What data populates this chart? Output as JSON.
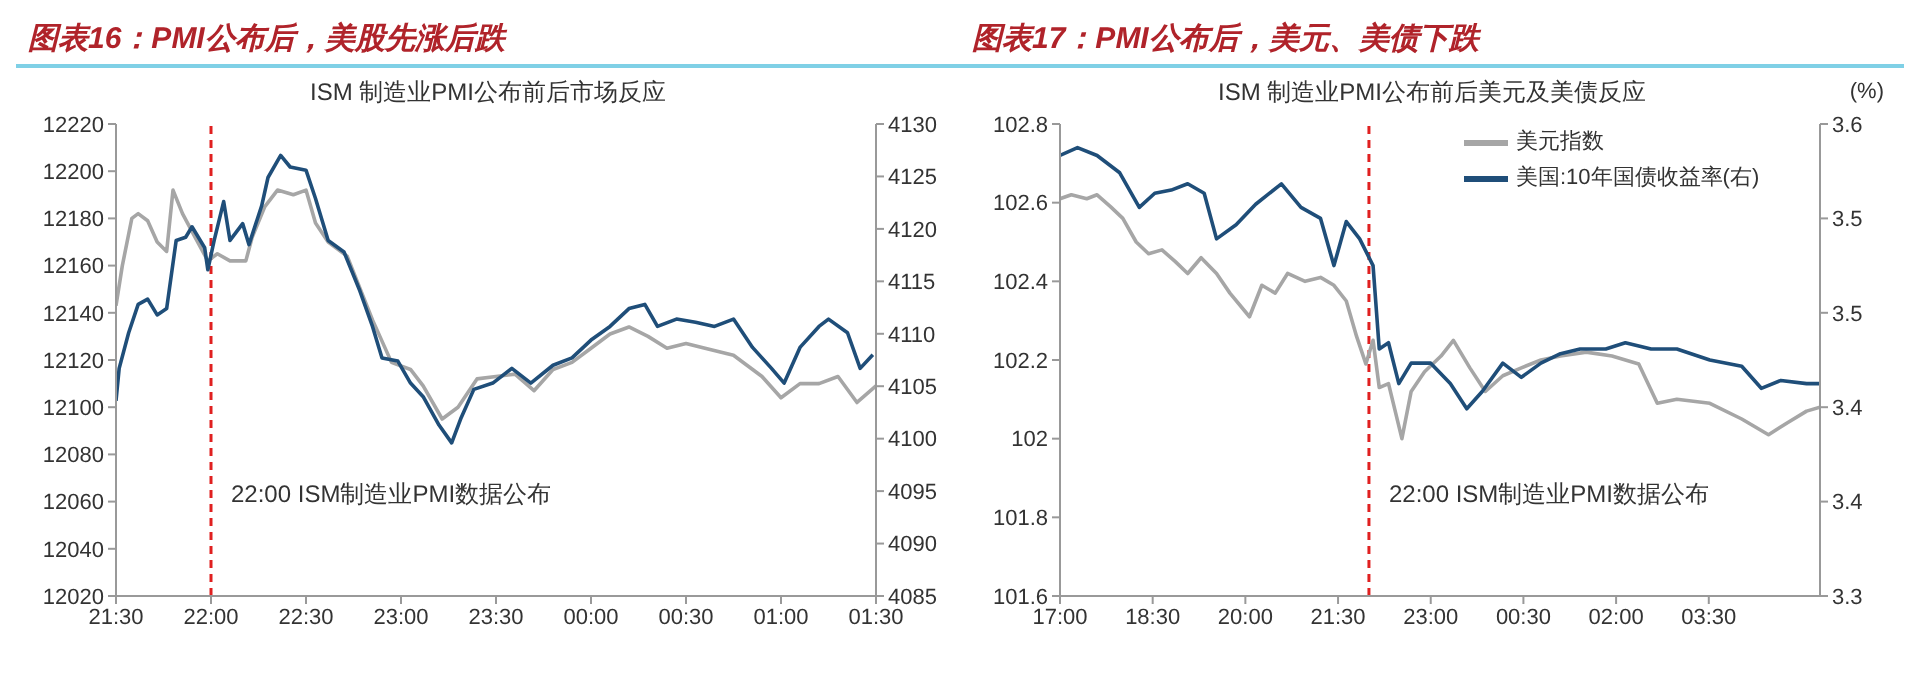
{
  "chart_data": [
    {
      "type": "line",
      "title": "图表16：PMI公布后，美股先涨后跌",
      "subtitle": "ISM 制造业PMI公布前后市场反应",
      "legend": false,
      "xlim": [
        "--04-03T21:30",
        "--04-04T01:30"
      ],
      "xticks": [
        {
          "value": "--04-03T21:30",
          "label": "21:30"
        },
        {
          "value": "--04-03T22:00",
          "label": "22:00"
        },
        {
          "value": "--04-03T22:30",
          "label": "22:30"
        },
        {
          "value": "--04-03T23:00",
          "label": "23:00"
        },
        {
          "value": "--04-03T23:30",
          "label": "23:30"
        },
        {
          "value": "--04-04T00:00",
          "label": "00:00"
        },
        {
          "value": "--04-04T00:30",
          "label": "00:30"
        },
        {
          "value": "--04-04T01:00",
          "label": "01:00"
        },
        {
          "value": "--04-04T01:30",
          "label": "01:30"
        }
      ],
      "ylim": [
        12020,
        12220
      ],
      "yticks": [
        12020,
        12040,
        12060,
        12080,
        12100,
        12120,
        12140,
        12160,
        12180,
        12200,
        12220
      ],
      "y2lim": [
        4085,
        4130
      ],
      "y2ticks": [
        4085,
        4090,
        4095,
        4100,
        4105,
        4110,
        4115,
        4120,
        4125,
        4130
      ],
      "ref_lines": [
        {
          "axis": "x",
          "value": "--04-03T22:00",
          "label": "22:00 ISM制造业PMI数据公布",
          "color": "#e02020",
          "line_style": "dashed"
        }
      ],
      "series": [
        {
          "color": "#a6a6a6",
          "x": [
            "--04-03T21:30",
            "--04-03T21:32",
            "--04-03T21:35",
            "--04-03T21:37",
            "--04-03T21:40",
            "--04-03T21:43",
            "--04-03T21:46",
            "--04-03T21:48",
            "--04-03T21:51",
            "--04-03T21:55",
            "--04-03T21:59",
            "--04-03T22:02",
            "--04-03T22:06",
            "--04-03T22:11",
            "--04-03T22:13",
            "--04-03T22:17",
            "--04-03T22:21",
            "--04-03T22:26",
            "--04-03T22:30",
            "--04-03T22:33",
            "--04-03T22:37",
            "--04-03T22:43",
            "--04-03T22:51",
            "--04-03T22:57",
            "--04-03T23:03",
            "--04-03T23:07",
            "--04-03T23:13",
            "--04-03T23:18",
            "--04-03T23:24",
            "--04-03T23:30",
            "--04-03T23:36",
            "--04-03T23:42",
            "--04-03T23:48",
            "--04-03T23:54",
            "--04-04T00:00",
            "--04-04T00:06",
            "--04-04T00:12",
            "--04-04T00:18",
            "--04-04T00:24",
            "--04-04T00:30",
            "--04-04T00:36",
            "--04-04T00:45",
            "--04-04T00:54",
            "--04-04T01:00",
            "--04-04T01:06",
            "--04-04T01:12",
            "--04-04T01:18",
            "--04-04T01:24",
            "--04-04T01:30"
          ],
          "values": [
            12143,
            12160,
            12180,
            12182,
            12179,
            12170,
            12166,
            12192,
            12182,
            12172,
            12162,
            12165,
            12162,
            12162,
            12172,
            12185,
            12192,
            12190,
            12192,
            12178,
            12170,
            12164,
            12137,
            12119,
            12116,
            12109,
            12095,
            12100,
            12112,
            12113,
            12114,
            12107,
            12116,
            12119,
            12125,
            12131,
            12134,
            12130,
            12125,
            12127,
            12125,
            12122,
            12113,
            12104,
            12110,
            12110,
            12113,
            12102,
            12109
          ]
        },
        {
          "color": "#1f4e79",
          "axis": "y2",
          "x": [
            "--04-03T21:30",
            "--04-03T21:31",
            "--04-03T21:34",
            "--04-03T21:37",
            "--04-03T21:40",
            "--04-03T21:43",
            "--04-03T21:46",
            "--04-03T21:49",
            "--04-03T21:52",
            "--04-03T21:54",
            "--04-03T21:58",
            "--04-03T21:59",
            "--04-03T22:01",
            "--04-03T22:04",
            "--04-03T22:06",
            "--04-03T22:10",
            "--04-03T22:12",
            "--04-03T22:16",
            "--04-03T22:18",
            "--04-03T22:22",
            "--04-03T22:25",
            "--04-03T22:30",
            "--04-03T22:33",
            "--04-03T22:37",
            "--04-03T22:42",
            "--04-03T22:47",
            "--04-03T22:51",
            "--04-03T22:54",
            "--04-03T22:59",
            "--04-03T23:03",
            "--04-03T23:07",
            "--04-03T23:12",
            "--04-03T23:16",
            "--04-03T23:19",
            "--04-03T23:23",
            "--04-03T23:29",
            "--04-03T23:35",
            "--04-03T23:41",
            "--04-03T23:48",
            "--04-03T23:54",
            "--04-04T00:00",
            "--04-04T00:06",
            "--04-04T00:12",
            "--04-04T00:17",
            "--04-04T00:21",
            "--04-04T00:27",
            "--04-04T00:33",
            "--04-04T00:39",
            "--04-04T00:45",
            "--04-04T00:51",
            "--04-04T00:57",
            "--04-04T01:01",
            "--04-04T01:06",
            "--04-04T01:12",
            "--04-04T01:15",
            "--04-04T01:21",
            "--04-04T01:25",
            "--04-04T01:29"
          ],
          "values": [
            4103.6,
            4106.7,
            4110.1,
            4112.8,
            4113.3,
            4111.8,
            4112.4,
            4118.9,
            4119.2,
            4120.2,
            4118.2,
            4116.1,
            4118.9,
            4122.6,
            4118.9,
            4120.5,
            4118.5,
            4122.2,
            4124.9,
            4127.0,
            4125.9,
            4125.6,
            4122.9,
            4118.9,
            4117.8,
            4114.1,
            4110.7,
            4107.7,
            4107.4,
            4105.3,
            4104.0,
            4101.3,
            4099.6,
            4102.0,
            4104.7,
            4105.3,
            4106.7,
            4105.3,
            4107.0,
            4107.7,
            4109.4,
            4110.7,
            4112.4,
            4112.8,
            4110.7,
            4111.4,
            4111.1,
            4110.7,
            4111.4,
            4108.7,
            4106.7,
            4105.3,
            4108.7,
            4110.7,
            4111.4,
            4110.1,
            4106.7,
            4108.0
          ]
        }
      ]
    },
    {
      "type": "line",
      "title": "图表17：PMI公布后，美元、美债下跌",
      "subtitle": "ISM 制造业PMI公布前后美元及美债反应",
      "y2label": "(%)",
      "legend": "top right",
      "xlim": [
        "--04-03T17:00",
        "--04-04T05:18"
      ],
      "xticks": [
        {
          "value": "--04-03T17:00",
          "label": "17:00"
        },
        {
          "value": "--04-03T18:30",
          "label": "18:30"
        },
        {
          "value": "--04-03T20:00",
          "label": "20:00"
        },
        {
          "value": "--04-03T21:30",
          "label": "21:30"
        },
        {
          "value": "--04-03T23:00",
          "label": "23:00"
        },
        {
          "value": "--04-04T00:30",
          "label": "00:30"
        },
        {
          "value": "--04-04T02:00",
          "label": "02:00"
        },
        {
          "value": "--04-04T03:30",
          "label": "03:30"
        }
      ],
      "ylim": [
        101.6,
        102.8
      ],
      "yticks": [
        101.6,
        101.8,
        102,
        102.2,
        102.4,
        102.6,
        102.8
      ],
      "y2lim": [
        3.3,
        3.6
      ],
      "y2ticks": [
        3.3,
        {
          "value": 3.36,
          "label": "3.4"
        },
        {
          "value": 3.42,
          "label": "3.4"
        },
        {
          "value": 3.48,
          "label": "3.5"
        },
        {
          "value": 3.54,
          "label": "3.5"
        },
        3.6
      ],
      "ref_lines": [
        {
          "axis": "x",
          "value": "--04-03T22:00",
          "label": "22:00 ISM制造业PMI数据公布",
          "color": "#e02020",
          "line_style": "dashed"
        }
      ],
      "series": [
        {
          "name": "美元指数",
          "color": "#a6a6a6",
          "x": [
            "--04-03T17:00",
            "--04-03T17:11",
            "--04-03T17:26",
            "--04-03T17:36",
            "--04-03T17:49",
            "--04-03T18:01",
            "--04-03T18:14",
            "--04-03T18:26",
            "--04-03T18:39",
            "--04-03T18:52",
            "--04-03T19:04",
            "--04-03T19:17",
            "--04-03T19:32",
            "--04-03T19:45",
            "--04-03T20:04",
            "--04-03T20:16",
            "--04-03T20:29",
            "--04-03T20:41",
            "--04-03T20:58",
            "--04-03T21:13",
            "--04-03T21:26",
            "--04-03T21:38",
            "--04-03T21:48",
            "--04-03T21:57",
            "--04-03T22:04",
            "--04-03T22:10",
            "--04-03T22:19",
            "--04-03T22:32",
            "--04-03T22:41",
            "--04-03T22:54",
            "--04-03T23:10",
            "--04-03T23:22",
            "--04-03T23:38",
            "--04-03T23:53",
            "--04-04T00:10",
            "--04-04T00:28",
            "--04-04T00:47",
            "--04-04T01:06",
            "--04-04T01:31",
            "--04-04T01:56",
            "--04-04T02:22",
            "--04-04T02:40",
            "--04-04T02:59",
            "--04-04T03:31",
            "--04-04T04:02",
            "--04-04T04:28",
            "--04-04T04:46",
            "--04-04T05:05",
            "--04-04T05:18"
          ],
          "values": [
            102.61,
            102.62,
            102.61,
            102.62,
            102.59,
            102.56,
            102.5,
            102.47,
            102.48,
            102.45,
            102.42,
            102.46,
            102.42,
            102.37,
            102.31,
            102.39,
            102.37,
            102.42,
            102.4,
            102.41,
            102.39,
            102.35,
            102.26,
            102.19,
            102.25,
            102.13,
            102.14,
            102.0,
            102.12,
            102.17,
            102.21,
            102.25,
            102.18,
            102.12,
            102.16,
            102.18,
            102.2,
            102.21,
            102.22,
            102.21,
            102.19,
            102.09,
            102.1,
            102.09,
            102.05,
            102.01,
            102.04,
            102.07,
            102.08
          ]
        },
        {
          "name": "美国:10年国债收益率(右)",
          "color": "#1f4e79",
          "axis": "y2",
          "x": [
            "--04-03T17:00",
            "--04-03T17:17",
            "--04-03T17:36",
            "--04-03T17:58",
            "--04-03T18:17",
            "--04-03T18:32",
            "--04-03T18:48",
            "--04-03T19:04",
            "--04-03T19:20",
            "--04-03T19:32",
            "--04-03T19:51",
            "--04-03T20:10",
            "--04-03T20:35",
            "--04-03T20:54",
            "--04-03T21:13",
            "--04-03T21:26",
            "--04-03T21:38",
            "--04-03T21:51",
            "--04-03T22:04",
            "--04-03T22:10",
            "--04-03T22:19",
            "--04-03T22:29",
            "--04-03T22:41",
            "--04-03T23:00",
            "--04-03T23:19",
            "--04-03T23:35",
            "--04-03T23:50",
            "--04-04T00:10",
            "--04-04T00:28",
            "--04-04T00:47",
            "--04-04T01:06",
            "--04-04T01:25",
            "--04-04T01:50",
            "--04-04T02:09",
            "--04-04T02:34",
            "--04-04T02:59",
            "--04-04T03:31",
            "--04-04T04:02",
            "--04-04T04:21",
            "--04-04T04:40",
            "--04-04T05:05",
            "--04-04T05:18"
          ],
          "values": [
            3.58,
            3.585,
            3.58,
            3.569,
            3.547,
            3.556,
            3.558,
            3.562,
            3.556,
            3.527,
            3.536,
            3.549,
            3.562,
            3.547,
            3.54,
            3.51,
            3.538,
            3.527,
            3.51,
            3.457,
            3.461,
            3.435,
            3.448,
            3.448,
            3.435,
            3.419,
            3.43,
            3.448,
            3.439,
            3.448,
            3.454,
            3.457,
            3.457,
            3.461,
            3.457,
            3.457,
            3.45,
            3.446,
            3.432,
            3.437,
            3.435,
            3.435
          ]
        }
      ]
    }
  ]
}
